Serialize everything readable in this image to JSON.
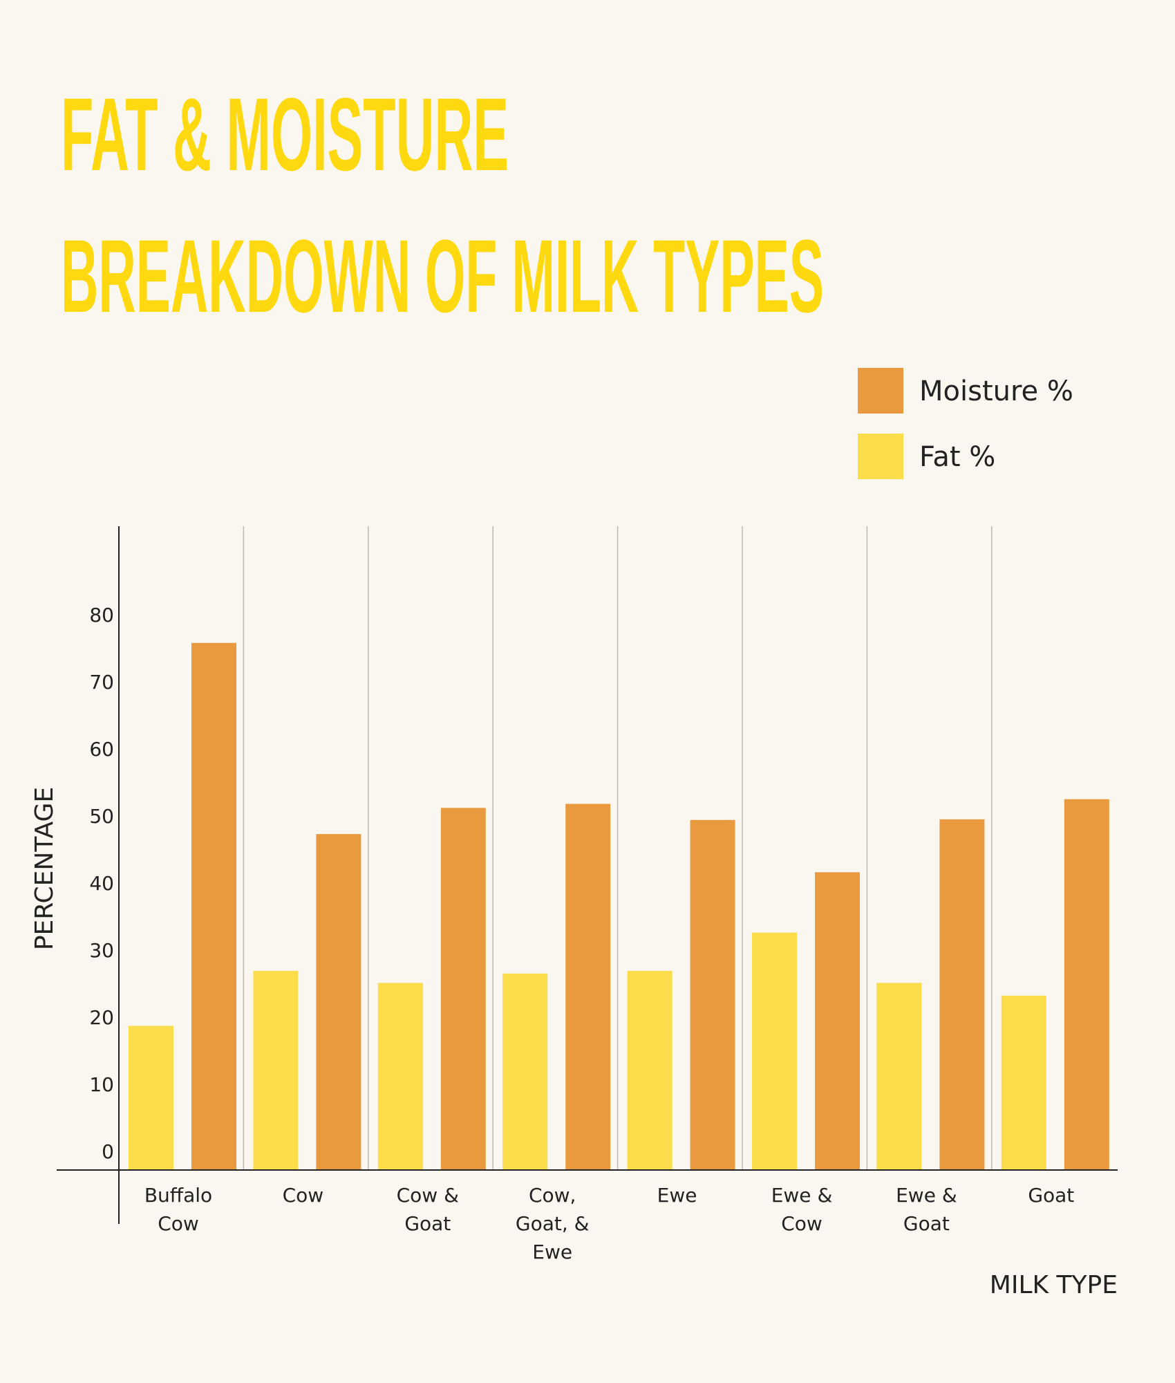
{
  "chart_data": {
    "type": "bar",
    "title_lines": [
      "FAT & MOISTURE",
      "BREAKDOWN OF MILK TYPES"
    ],
    "xlabel": "MILK TYPE",
    "ylabel": "PERCENTAGE",
    "ylim": [
      0,
      96
    ],
    "yticks": [
      0,
      10,
      20,
      30,
      40,
      50,
      60,
      70,
      80
    ],
    "categories": [
      [
        "Buffalo",
        "Cow"
      ],
      [
        "Cow"
      ],
      [
        "Cow &",
        "Goat"
      ],
      [
        "Cow,",
        "Goat, &",
        "Ewe"
      ],
      [
        "Ewe"
      ],
      [
        "Ewe &",
        "Cow"
      ],
      [
        "Ewe &",
        "Goat"
      ],
      [
        "Goat"
      ]
    ],
    "series": [
      {
        "name": "Fat %",
        "color": "#FBDC4A",
        "values": [
          21.5,
          29.7,
          27.9,
          29.3,
          29.7,
          35.4,
          27.9,
          26.0
        ]
      },
      {
        "name": "Moisture %",
        "color": "#E9993E",
        "values": [
          78.6,
          50.1,
          54.0,
          54.6,
          52.2,
          44.4,
          52.3,
          55.3
        ]
      }
    ],
    "legend": {
      "placement": "top-right",
      "order": [
        "Moisture %",
        "Fat %"
      ]
    },
    "grid": "vertical separators between categories",
    "title_color": "#FFD90F"
  }
}
